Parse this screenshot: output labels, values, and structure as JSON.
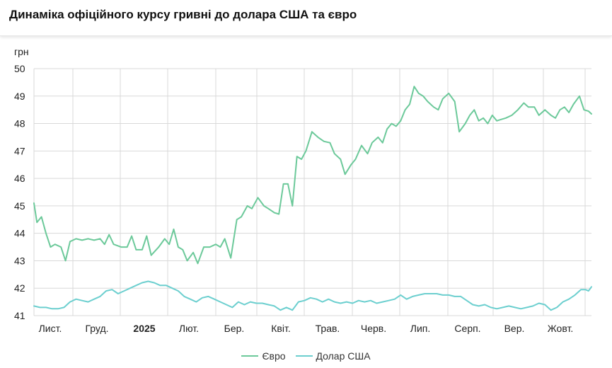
{
  "page": {
    "title": "Динаміка офіційного курсу гривні до долара США та євро"
  },
  "chart_data": {
    "type": "line",
    "unit_label": "грн",
    "ylim": [
      41,
      50
    ],
    "y_ticks": [
      41,
      42,
      43,
      44,
      45,
      46,
      47,
      48,
      49,
      50
    ],
    "x_tick_labels": [
      {
        "label": "Лист.",
        "bold": false
      },
      {
        "label": "Груд.",
        "bold": false
      },
      {
        "label": "2025",
        "bold": true
      },
      {
        "label": "Лют.",
        "bold": false
      },
      {
        "label": "Бер.",
        "bold": false
      },
      {
        "label": "Квіт.",
        "bold": false
      },
      {
        "label": "Трав.",
        "bold": false
      },
      {
        "label": "Черв.",
        "bold": false
      },
      {
        "label": "Лип.",
        "bold": false
      },
      {
        "label": "Серп.",
        "bold": false
      },
      {
        "label": "Вер.",
        "bold": false
      },
      {
        "label": "Жовт.",
        "bold": false
      }
    ],
    "x_start": "2024-10-21",
    "x_end": "2025-10-27",
    "grid": true,
    "legend_position": "bottom",
    "series": [
      {
        "name": "Євро",
        "color": "#6cc99a",
        "points": [
          [
            "2024-10-21",
            45.1
          ],
          [
            "2024-10-23",
            44.4
          ],
          [
            "2024-10-26",
            44.6
          ],
          [
            "2024-10-29",
            44.0
          ],
          [
            "2024-11-01",
            43.5
          ],
          [
            "2024-11-04",
            43.6
          ],
          [
            "2024-11-08",
            43.5
          ],
          [
            "2024-11-11",
            43.0
          ],
          [
            "2024-11-14",
            43.7
          ],
          [
            "2024-11-18",
            43.8
          ],
          [
            "2024-11-22",
            43.75
          ],
          [
            "2024-11-26",
            43.8
          ],
          [
            "2024-11-30",
            43.75
          ],
          [
            "2024-12-04",
            43.8
          ],
          [
            "2024-12-07",
            43.6
          ],
          [
            "2024-12-10",
            43.95
          ],
          [
            "2024-12-13",
            43.6
          ],
          [
            "2024-12-18",
            43.5
          ],
          [
            "2024-12-22",
            43.5
          ],
          [
            "2024-12-25",
            43.9
          ],
          [
            "2024-12-28",
            43.4
          ],
          [
            "2025-01-01",
            43.4
          ],
          [
            "2025-01-04",
            43.9
          ],
          [
            "2025-01-07",
            43.2
          ],
          [
            "2025-01-12",
            43.5
          ],
          [
            "2025-01-16",
            43.8
          ],
          [
            "2025-01-19",
            43.6
          ],
          [
            "2025-01-22",
            44.15
          ],
          [
            "2025-01-25",
            43.5
          ],
          [
            "2025-01-28",
            43.4
          ],
          [
            "2025-01-31",
            43.0
          ],
          [
            "2025-02-04",
            43.3
          ],
          [
            "2025-02-07",
            42.9
          ],
          [
            "2025-02-11",
            43.5
          ],
          [
            "2025-02-15",
            43.5
          ],
          [
            "2025-02-19",
            43.6
          ],
          [
            "2025-02-22",
            43.5
          ],
          [
            "2025-02-25",
            43.8
          ],
          [
            "2025-03-01",
            43.1
          ],
          [
            "2025-03-05",
            44.5
          ],
          [
            "2025-03-08",
            44.6
          ],
          [
            "2025-03-12",
            45.0
          ],
          [
            "2025-03-15",
            44.9
          ],
          [
            "2025-03-19",
            45.3
          ],
          [
            "2025-03-23",
            45.0
          ],
          [
            "2025-03-26",
            44.9
          ],
          [
            "2025-03-30",
            44.75
          ],
          [
            "2025-04-02",
            44.7
          ],
          [
            "2025-04-05",
            45.8
          ],
          [
            "2025-04-08",
            45.8
          ],
          [
            "2025-04-11",
            45.0
          ],
          [
            "2025-04-14",
            46.8
          ],
          [
            "2025-04-17",
            46.7
          ],
          [
            "2025-04-20",
            47.0
          ],
          [
            "2025-04-24",
            47.7
          ],
          [
            "2025-04-28",
            47.5
          ],
          [
            "2025-05-02",
            47.35
          ],
          [
            "2025-05-06",
            47.3
          ],
          [
            "2025-05-09",
            46.9
          ],
          [
            "2025-05-13",
            46.7
          ],
          [
            "2025-05-16",
            46.15
          ],
          [
            "2025-05-20",
            46.5
          ],
          [
            "2025-05-23",
            46.7
          ],
          [
            "2025-05-27",
            47.2
          ],
          [
            "2025-05-31",
            46.9
          ],
          [
            "2025-06-03",
            47.3
          ],
          [
            "2025-06-07",
            47.5
          ],
          [
            "2025-06-10",
            47.3
          ],
          [
            "2025-06-13",
            47.8
          ],
          [
            "2025-06-16",
            48.0
          ],
          [
            "2025-06-19",
            47.9
          ],
          [
            "2025-06-22",
            48.1
          ],
          [
            "2025-06-25",
            48.5
          ],
          [
            "2025-06-28",
            48.7
          ],
          [
            "2025-07-01",
            49.35
          ],
          [
            "2025-07-04",
            49.1
          ],
          [
            "2025-07-07",
            49.0
          ],
          [
            "2025-07-10",
            48.8
          ],
          [
            "2025-07-14",
            48.6
          ],
          [
            "2025-07-17",
            48.5
          ],
          [
            "2025-07-20",
            48.9
          ],
          [
            "2025-07-24",
            49.1
          ],
          [
            "2025-07-28",
            48.8
          ],
          [
            "2025-07-31",
            47.7
          ],
          [
            "2025-08-04",
            48.0
          ],
          [
            "2025-08-07",
            48.3
          ],
          [
            "2025-08-10",
            48.5
          ],
          [
            "2025-08-13",
            48.1
          ],
          [
            "2025-08-16",
            48.2
          ],
          [
            "2025-08-19",
            48.0
          ],
          [
            "2025-08-22",
            48.3
          ],
          [
            "2025-08-25",
            48.1
          ],
          [
            "2025-08-28",
            48.15
          ],
          [
            "2025-08-31",
            48.2
          ],
          [
            "2025-09-04",
            48.3
          ],
          [
            "2025-09-08",
            48.5
          ],
          [
            "2025-09-12",
            48.75
          ],
          [
            "2025-09-15",
            48.6
          ],
          [
            "2025-09-19",
            48.6
          ],
          [
            "2025-09-22",
            48.3
          ],
          [
            "2025-09-26",
            48.5
          ],
          [
            "2025-09-30",
            48.3
          ],
          [
            "2025-10-03",
            48.2
          ],
          [
            "2025-10-06",
            48.5
          ],
          [
            "2025-10-09",
            48.6
          ],
          [
            "2025-10-12",
            48.4
          ],
          [
            "2025-10-15",
            48.7
          ],
          [
            "2025-10-19",
            49.0
          ],
          [
            "2025-10-22",
            48.5
          ],
          [
            "2025-10-25",
            48.45
          ],
          [
            "2025-10-27",
            48.35
          ]
        ]
      },
      {
        "name": "Долар США",
        "color": "#6ccfcf",
        "points": [
          [
            "2024-10-21",
            41.35
          ],
          [
            "2024-10-25",
            41.3
          ],
          [
            "2024-10-29",
            41.3
          ],
          [
            "2024-11-02",
            41.25
          ],
          [
            "2024-11-06",
            41.25
          ],
          [
            "2024-11-10",
            41.3
          ],
          [
            "2024-11-14",
            41.5
          ],
          [
            "2024-11-18",
            41.6
          ],
          [
            "2024-11-22",
            41.55
          ],
          [
            "2024-11-26",
            41.5
          ],
          [
            "2024-11-30",
            41.6
          ],
          [
            "2024-12-04",
            41.7
          ],
          [
            "2024-12-08",
            41.9
          ],
          [
            "2024-12-12",
            41.95
          ],
          [
            "2024-12-16",
            41.8
          ],
          [
            "2024-12-20",
            41.9
          ],
          [
            "2024-12-24",
            42.0
          ],
          [
            "2024-12-28",
            42.1
          ],
          [
            "2025-01-01",
            42.2
          ],
          [
            "2025-01-05",
            42.25
          ],
          [
            "2025-01-09",
            42.2
          ],
          [
            "2025-01-13",
            42.1
          ],
          [
            "2025-01-17",
            42.1
          ],
          [
            "2025-01-21",
            42.0
          ],
          [
            "2025-01-25",
            41.9
          ],
          [
            "2025-01-29",
            41.7
          ],
          [
            "2025-02-02",
            41.6
          ],
          [
            "2025-02-06",
            41.5
          ],
          [
            "2025-02-10",
            41.65
          ],
          [
            "2025-02-14",
            41.7
          ],
          [
            "2025-02-18",
            41.6
          ],
          [
            "2025-02-22",
            41.5
          ],
          [
            "2025-02-26",
            41.4
          ],
          [
            "2025-03-02",
            41.3
          ],
          [
            "2025-03-06",
            41.5
          ],
          [
            "2025-03-10",
            41.4
          ],
          [
            "2025-03-14",
            41.5
          ],
          [
            "2025-03-18",
            41.45
          ],
          [
            "2025-03-22",
            41.45
          ],
          [
            "2025-03-26",
            41.4
          ],
          [
            "2025-03-30",
            41.35
          ],
          [
            "2025-04-03",
            41.2
          ],
          [
            "2025-04-07",
            41.3
          ],
          [
            "2025-04-11",
            41.2
          ],
          [
            "2025-04-15",
            41.5
          ],
          [
            "2025-04-19",
            41.55
          ],
          [
            "2025-04-23",
            41.65
          ],
          [
            "2025-04-27",
            41.6
          ],
          [
            "2025-05-01",
            41.5
          ],
          [
            "2025-05-05",
            41.6
          ],
          [
            "2025-05-09",
            41.5
          ],
          [
            "2025-05-13",
            41.45
          ],
          [
            "2025-05-17",
            41.5
          ],
          [
            "2025-05-21",
            41.45
          ],
          [
            "2025-05-25",
            41.55
          ],
          [
            "2025-05-29",
            41.5
          ],
          [
            "2025-06-02",
            41.55
          ],
          [
            "2025-06-06",
            41.45
          ],
          [
            "2025-06-10",
            41.5
          ],
          [
            "2025-06-14",
            41.55
          ],
          [
            "2025-06-18",
            41.6
          ],
          [
            "2025-06-22",
            41.75
          ],
          [
            "2025-06-26",
            41.6
          ],
          [
            "2025-06-30",
            41.7
          ],
          [
            "2025-07-04",
            41.75
          ],
          [
            "2025-07-08",
            41.8
          ],
          [
            "2025-07-12",
            41.8
          ],
          [
            "2025-07-16",
            41.8
          ],
          [
            "2025-07-20",
            41.75
          ],
          [
            "2025-07-24",
            41.75
          ],
          [
            "2025-07-28",
            41.7
          ],
          [
            "2025-08-01",
            41.7
          ],
          [
            "2025-08-05",
            41.55
          ],
          [
            "2025-08-09",
            41.4
          ],
          [
            "2025-08-13",
            41.35
          ],
          [
            "2025-08-17",
            41.4
          ],
          [
            "2025-08-21",
            41.3
          ],
          [
            "2025-08-25",
            41.25
          ],
          [
            "2025-08-29",
            41.3
          ],
          [
            "2025-09-02",
            41.35
          ],
          [
            "2025-09-06",
            41.3
          ],
          [
            "2025-09-10",
            41.25
          ],
          [
            "2025-09-14",
            41.3
          ],
          [
            "2025-09-18",
            41.35
          ],
          [
            "2025-09-22",
            41.45
          ],
          [
            "2025-09-26",
            41.4
          ],
          [
            "2025-09-30",
            41.2
          ],
          [
            "2025-10-04",
            41.3
          ],
          [
            "2025-10-08",
            41.5
          ],
          [
            "2025-10-12",
            41.6
          ],
          [
            "2025-10-16",
            41.75
          ],
          [
            "2025-10-20",
            41.95
          ],
          [
            "2025-10-23",
            41.95
          ],
          [
            "2025-10-25",
            41.9
          ],
          [
            "2025-10-27",
            42.05
          ]
        ]
      }
    ]
  }
}
